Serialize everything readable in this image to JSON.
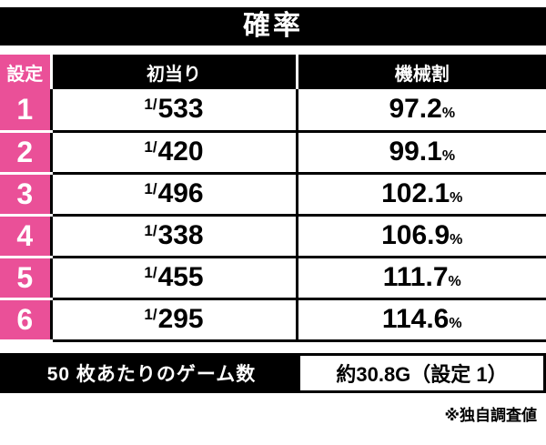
{
  "title": "確率",
  "headers": {
    "setting": "設定",
    "first_hit": "初当り",
    "payout": "機械割"
  },
  "rows": [
    {
      "setting": "1",
      "denom_prefix": "1/",
      "denom": "533",
      "payout": "97.2",
      "payout_unit": "%"
    },
    {
      "setting": "2",
      "denom_prefix": "1/",
      "denom": "420",
      "payout": "99.1",
      "payout_unit": "%"
    },
    {
      "setting": "3",
      "denom_prefix": "1/",
      "denom": "496",
      "payout": "102.1",
      "payout_unit": "%"
    },
    {
      "setting": "4",
      "denom_prefix": "1/",
      "denom": "338",
      "payout": "106.9",
      "payout_unit": "%"
    },
    {
      "setting": "5",
      "denom_prefix": "1/",
      "denom": "455",
      "payout": "111.7",
      "payout_unit": "%"
    },
    {
      "setting": "6",
      "denom_prefix": "1/",
      "denom": "295",
      "payout": "114.6",
      "payout_unit": "%"
    }
  ],
  "summary": {
    "label": "50 枚あたりのゲーム数",
    "value": "約30.8G（設定 1）"
  },
  "footnote": "※独自調査値",
  "colors": {
    "pink": "#ea5098",
    "black": "#000000",
    "white": "#ffffff"
  },
  "chart_data": {
    "type": "table",
    "title": "確率",
    "columns": [
      "設定",
      "初当り",
      "機械割"
    ],
    "rows": [
      [
        "1",
        "1/533",
        "97.2%"
      ],
      [
        "2",
        "1/420",
        "99.1%"
      ],
      [
        "3",
        "1/496",
        "102.1%"
      ],
      [
        "4",
        "1/338",
        "106.9%"
      ],
      [
        "5",
        "1/455",
        "111.7%"
      ],
      [
        "6",
        "1/295",
        "114.6%"
      ]
    ],
    "summary_row": {
      "label": "50 枚あたりのゲーム数",
      "value": "約30.8G（設定 1）"
    },
    "footnote": "※独自調査値"
  }
}
